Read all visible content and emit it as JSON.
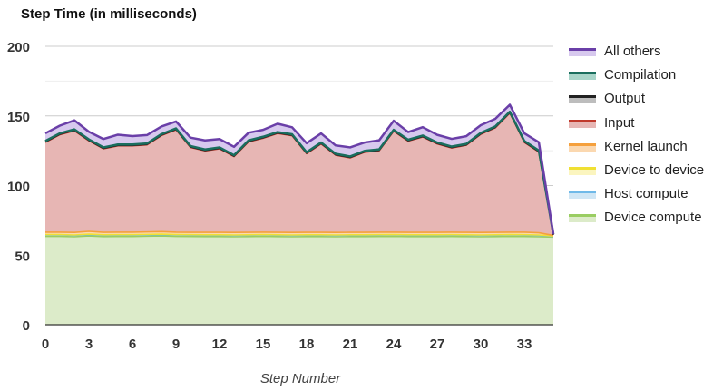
{
  "chart_data": {
    "type": "area",
    "stacked": true,
    "title": "Step Time (in milliseconds)",
    "xlabel": "Step Number",
    "ylabel": "",
    "ylim": [
      0,
      200
    ],
    "yticks": [
      "0",
      "50",
      "100",
      "150",
      "200"
    ],
    "xlim": [
      0,
      35
    ],
    "xticks": [
      "0",
      "3",
      "6",
      "9",
      "12",
      "15",
      "18",
      "21",
      "24",
      "27",
      "30",
      "33"
    ],
    "grid": true,
    "legend_position": "right",
    "x": [
      0,
      1,
      2,
      3,
      4,
      5,
      6,
      7,
      8,
      9,
      10,
      11,
      12,
      13,
      14,
      15,
      16,
      17,
      18,
      19,
      20,
      21,
      22,
      23,
      24,
      25,
      26,
      27,
      28,
      29,
      30,
      31,
      32,
      33,
      34,
      35
    ],
    "series": [
      {
        "name": "Device compute",
        "color": "#9acd62",
        "fill": "#dcebc9",
        "values": [
          63.5,
          63.5,
          63.2,
          63.8,
          63.3,
          63.4,
          63.4,
          63.6,
          63.8,
          63.5,
          63.4,
          63.3,
          63.3,
          63.2,
          63.3,
          63.5,
          63.3,
          63.2,
          63.3,
          63.3,
          63.2,
          63.3,
          63.3,
          63.4,
          63.5,
          63.3,
          63.3,
          63.3,
          63.4,
          63.3,
          63.2,
          63.3,
          63.5,
          63.4,
          63.2,
          63.0
        ]
      },
      {
        "name": "Host compute",
        "color": "#6fb9e8",
        "fill": "#cfe6f5",
        "values": [
          1.0,
          1.0,
          1.0,
          1.0,
          1.0,
          1.0,
          1.0,
          1.0,
          1.0,
          1.0,
          1.0,
          1.0,
          1.0,
          1.0,
          1.0,
          1.0,
          1.0,
          1.0,
          1.0,
          1.0,
          1.0,
          1.0,
          1.0,
          1.0,
          1.0,
          1.0,
          1.0,
          1.0,
          1.0,
          1.0,
          1.0,
          1.0,
          1.0,
          1.0,
          1.0,
          0.5
        ]
      },
      {
        "name": "Device to device",
        "color": "#f0e033",
        "fill": "#fbf5bf",
        "values": [
          0.3,
          0.3,
          0.3,
          0.3,
          0.3,
          0.3,
          0.3,
          0.3,
          0.3,
          0.3,
          0.3,
          0.3,
          0.3,
          0.3,
          0.3,
          0.3,
          0.3,
          0.3,
          0.3,
          0.3,
          0.3,
          0.3,
          0.3,
          0.3,
          0.3,
          0.3,
          0.3,
          0.3,
          0.3,
          0.3,
          0.3,
          0.3,
          0.3,
          0.3,
          0.3,
          0.2
        ]
      },
      {
        "name": "Kernel launch",
        "color": "#f5a03c",
        "fill": "#fbd8b0",
        "values": [
          1.7,
          1.7,
          1.8,
          2.0,
          1.8,
          1.8,
          1.8,
          1.8,
          1.8,
          1.7,
          1.7,
          1.8,
          1.8,
          1.8,
          1.8,
          1.7,
          1.8,
          1.8,
          1.8,
          1.8,
          1.8,
          1.8,
          1.8,
          1.8,
          1.7,
          1.8,
          1.8,
          1.8,
          1.8,
          1.8,
          1.8,
          1.8,
          1.7,
          1.8,
          1.6,
          0.5
        ]
      },
      {
        "name": "Input",
        "color": "#c0392b",
        "fill": "#e7b6b4",
        "values": [
          64.5,
          70.0,
          73.0,
          65.0,
          60.0,
          62.0,
          62.0,
          62.5,
          69.0,
          73.5,
          61.0,
          58.5,
          60.0,
          54.5,
          65.0,
          67.5,
          71.0,
          69.5,
          56.5,
          63.5,
          55.5,
          53.5,
          57.5,
          58.5,
          72.5,
          65.5,
          68.5,
          63.5,
          60.5,
          62.5,
          70.5,
          75.0,
          85.5,
          64.5,
          58.0,
          0.3
        ]
      },
      {
        "name": "Output",
        "color": "#222222",
        "fill": "#bdbdbd",
        "values": [
          0.3,
          0.3,
          0.3,
          0.3,
          0.3,
          0.3,
          0.3,
          0.3,
          0.3,
          0.3,
          0.3,
          0.3,
          0.3,
          0.3,
          0.3,
          0.3,
          0.3,
          0.3,
          0.3,
          0.3,
          0.3,
          0.3,
          0.3,
          0.3,
          0.3,
          0.3,
          0.3,
          0.3,
          0.3,
          0.3,
          0.3,
          0.3,
          0.3,
          0.3,
          0.3,
          0.2
        ]
      },
      {
        "name": "Compilation",
        "color": "#1a6e5e",
        "fill": "#a8d5c9",
        "values": [
          0.7,
          0.7,
          0.7,
          0.7,
          0.7,
          0.7,
          0.7,
          0.7,
          0.7,
          0.7,
          0.7,
          0.7,
          0.7,
          0.7,
          0.7,
          0.7,
          0.7,
          0.7,
          0.7,
          0.7,
          0.7,
          0.7,
          0.7,
          0.7,
          0.7,
          0.7,
          0.7,
          0.7,
          0.7,
          0.7,
          0.7,
          0.7,
          0.7,
          0.7,
          0.7,
          0.3
        ]
      },
      {
        "name": "All others",
        "color": "#6a3fa8",
        "fill": "#d7c9ee",
        "values": [
          5.5,
          5.5,
          6.5,
          5.5,
          6.0,
          7.0,
          6.0,
          6.0,
          5.5,
          5.0,
          6.0,
          6.5,
          6.0,
          6.0,
          5.5,
          5.0,
          6.0,
          5.0,
          6.5,
          6.5,
          6.0,
          6.5,
          6.0,
          6.5,
          6.5,
          5.5,
          6.0,
          5.5,
          5.5,
          5.5,
          5.5,
          5.5,
          5.0,
          5.5,
          6.0,
          0.2
        ]
      }
    ]
  }
}
